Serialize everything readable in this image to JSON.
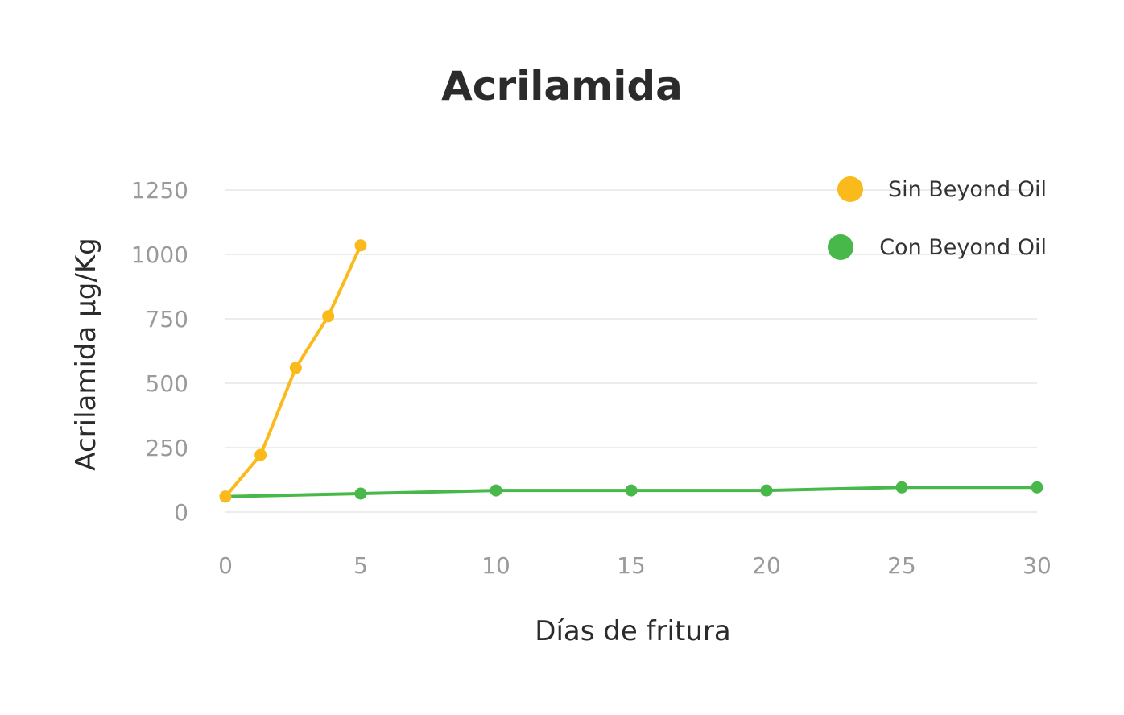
{
  "chart_data": {
    "type": "line",
    "title": "Acrilamida",
    "xlabel": "Días de fritura",
    "ylabel": "Acrilamida µg/Kg",
    "xlim": [
      0,
      30
    ],
    "ylim": [
      0,
      1250
    ],
    "x_ticks": [
      0,
      5,
      10,
      15,
      20,
      25,
      30
    ],
    "y_ticks": [
      0,
      250,
      500,
      750,
      1000,
      1250
    ],
    "grid": true,
    "legend_position": "top-right",
    "series": [
      {
        "name": "Sin Beyond Oil",
        "color": "#FBBA1B",
        "points": [
          {
            "x": 0,
            "y": 60
          },
          {
            "x": 1.3,
            "y": 222
          },
          {
            "x": 2.6,
            "y": 560
          },
          {
            "x": 3.8,
            "y": 760
          },
          {
            "x": 5,
            "y": 1035
          }
        ]
      },
      {
        "name": "Con Beyond Oil",
        "color": "#48B84A",
        "points": [
          {
            "x": 0,
            "y": 60
          },
          {
            "x": 5,
            "y": 72
          },
          {
            "x": 10,
            "y": 84
          },
          {
            "x": 15,
            "y": 84
          },
          {
            "x": 20,
            "y": 84
          },
          {
            "x": 25,
            "y": 96
          },
          {
            "x": 30,
            "y": 96
          }
        ]
      }
    ]
  }
}
